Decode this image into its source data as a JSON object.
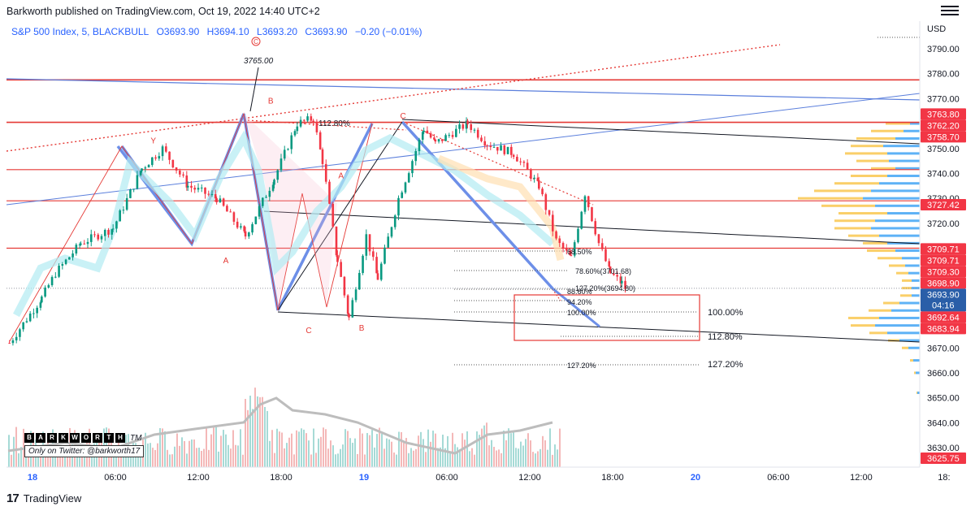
{
  "header": {
    "published": "Barkworth published on TradingView.com, Oct 19, 2022 14:40 UTC+2"
  },
  "symbol": {
    "name": "S&P 500 Index, 5, BLACKBULL",
    "open": "O3693.90",
    "high": "H3694.10",
    "low": "L3693.20",
    "close": "C3693.90",
    "change": "−0.20 (−0.01%)"
  },
  "axis": {
    "currency": "USD"
  },
  "footer": {
    "brand": "TradingView",
    "logo": "tv-logo-icon"
  },
  "watermark": {
    "letters": [
      "B",
      "A",
      "R",
      "K",
      "W",
      "O",
      "R",
      "T",
      "H"
    ],
    "tm": "TM",
    "twitter": "Only on Twitter: @barkworth17"
  },
  "colors": {
    "accent": "#2962ff",
    "red": "#f23645",
    "bull": "#26a69a",
    "text": "#131722"
  },
  "chart_data": {
    "type": "candlestick",
    "ylim": [
      3622,
      3797
    ],
    "y_ticks": [
      3790,
      3780,
      3770,
      3750,
      3740,
      3730,
      3720,
      3670,
      3660,
      3650,
      3640,
      3630
    ],
    "y_ticks_display": [
      "3790.00",
      "3780.00",
      "3770.00",
      "3750.00",
      "3740.00",
      "3730.00",
      "3720.00",
      "3670.00",
      "3660.00",
      "3650.00",
      "3640.00",
      "3630.00"
    ],
    "x_ticks": [
      {
        "label": "18",
        "pos": 0,
        "bold": true
      },
      {
        "label": "06:00",
        "pos": 72
      },
      {
        "label": "12:00",
        "pos": 144
      },
      {
        "label": "18:00",
        "pos": 216
      },
      {
        "label": "19",
        "pos": 288,
        "bold": true
      },
      {
        "label": "06:00",
        "pos": 360
      },
      {
        "label": "12:00",
        "pos": 432
      },
      {
        "label": "18:00",
        "pos": 504
      },
      {
        "label": "20",
        "pos": 576,
        "bold": true
      },
      {
        "label": "06:00",
        "pos": 648
      },
      {
        "label": "12:00",
        "pos": 720
      },
      {
        "label": "18:",
        "pos": 792
      }
    ],
    "price_path": [
      [
        -20,
        3672
      ],
      [
        8,
        3690
      ],
      [
        20,
        3700
      ],
      [
        42,
        3712
      ],
      [
        70,
        3718
      ],
      [
        95,
        3742
      ],
      [
        113,
        3750
      ],
      [
        135,
        3735
      ],
      [
        160,
        3730
      ],
      [
        185,
        3715
      ],
      [
        210,
        3738
      ],
      [
        230,
        3760
      ],
      [
        244,
        3762
      ],
      [
        252,
        3745
      ],
      [
        265,
        3705
      ],
      [
        275,
        3682
      ],
      [
        290,
        3715
      ],
      [
        300,
        3698
      ],
      [
        318,
        3730
      ],
      [
        340,
        3758
      ],
      [
        350,
        3752
      ],
      [
        378,
        3760
      ],
      [
        395,
        3752
      ],
      [
        418,
        3748
      ],
      [
        440,
        3735
      ],
      [
        455,
        3713
      ],
      [
        468,
        3706
      ],
      [
        480,
        3732
      ],
      [
        492,
        3712
      ],
      [
        502,
        3700
      ],
      [
        512,
        3696
      ],
      [
        518,
        3692
      ]
    ],
    "price_labels": [
      {
        "value": 3763.8,
        "text": "3763.80",
        "color": "#f23645"
      },
      {
        "value": 3762.2,
        "text": "3762.20",
        "color": "#f23645"
      },
      {
        "value": 3758.7,
        "text": "3758.70",
        "color": "#f23645"
      },
      {
        "value": 3727.42,
        "text": "3727.42",
        "color": "#f23645"
      },
      {
        "value": 3709.71,
        "text": "3709.71",
        "color": "#f23645"
      },
      {
        "value": 3709.71,
        "text": "3709.71",
        "color": "#f23645"
      },
      {
        "value": 3709.3,
        "text": "3709.30",
        "color": "#f23645"
      },
      {
        "value": 3698.9,
        "text": "3698.90",
        "color": "#f23645"
      },
      {
        "value": 3693.9,
        "text": "3693.90",
        "sub": "04:16",
        "color": "#2a5ea8"
      },
      {
        "value": 3692.64,
        "text": "3692.64",
        "color": "#f23645"
      },
      {
        "value": 3683.94,
        "text": "3683.94",
        "color": "#f23645"
      },
      {
        "value": 3625.75,
        "text": "3625.75",
        "color": "#f23645"
      }
    ],
    "horizontal_levels": [
      3777.5,
      3760.5,
      3741.5,
      3729.0,
      3710.0
    ],
    "wave_labels": [
      {
        "text": "Y",
        "t": 105,
        "v": 3752
      },
      {
        "text": "A",
        "t": 168,
        "v": 3704
      },
      {
        "text": "B",
        "t": 207,
        "v": 3768
      },
      {
        "text": "C",
        "t": 240,
        "v": 3676
      },
      {
        "text": "A",
        "t": 268,
        "v": 3738
      },
      {
        "text": "B",
        "t": 286,
        "v": 3677
      },
      {
        "text": "C",
        "t": 322,
        "v": 3762
      }
    ],
    "annotations": [
      {
        "text": "3765.00",
        "t": 222,
        "v": 3790
      },
      {
        "text": "112.80%",
        "t": 284,
        "v": 3761
      }
    ],
    "fib_left": [
      {
        "text": "68.50%",
        "v": 3709
      },
      {
        "text": "78.60%(3701.68)",
        "v": 3702
      },
      {
        "text": "127.20%(3694.80)",
        "v": 3696
      },
      {
        "text": "88.60%",
        "v": 3694
      },
      {
        "text": "94.20%",
        "v": 3690
      },
      {
        "text": "100.00%",
        "v": 3685
      },
      {
        "text": "127.20%",
        "v": 3663
      }
    ],
    "fib_right": [
      {
        "text": "100.00%",
        "v": 3685
      },
      {
        "text": "112.80%",
        "v": 3674
      },
      {
        "text": "127.20%",
        "v": 3663
      }
    ],
    "volume_profile": [
      {
        "v": 3760,
        "b": 30,
        "s": 12
      },
      {
        "v": 3757,
        "b": 40,
        "s": 20
      },
      {
        "v": 3754,
        "b": 48,
        "s": 30
      },
      {
        "v": 3751,
        "b": 40,
        "s": 45
      },
      {
        "v": 3748,
        "b": 52,
        "s": 40
      },
      {
        "v": 3745,
        "b": 40,
        "s": 38
      },
      {
        "v": 3742,
        "b": 30,
        "s": 30
      },
      {
        "v": 3739,
        "b": 45,
        "s": 40
      },
      {
        "v": 3736,
        "b": 55,
        "s": 50
      },
      {
        "v": 3733,
        "b": 70,
        "s": 60
      },
      {
        "v": 3730,
        "b": 80,
        "s": 70
      },
      {
        "v": 3727,
        "b": 66,
        "s": 55
      },
      {
        "v": 3724,
        "b": 60,
        "s": 40
      },
      {
        "v": 3721,
        "b": 50,
        "s": 55
      },
      {
        "v": 3718,
        "b": 45,
        "s": 60
      },
      {
        "v": 3715,
        "b": 38,
        "s": 50
      },
      {
        "v": 3712,
        "b": 30,
        "s": 40
      },
      {
        "v": 3709,
        "b": 35,
        "s": 30
      },
      {
        "v": 3706,
        "b": 30,
        "s": 22
      },
      {
        "v": 3703,
        "b": 20,
        "s": 18
      },
      {
        "v": 3700,
        "b": 15,
        "s": 14
      },
      {
        "v": 3697,
        "b": 12,
        "s": 10
      },
      {
        "v": 3694,
        "b": 12,
        "s": 10
      },
      {
        "v": 3691,
        "b": 14,
        "s": 10
      },
      {
        "v": 3688,
        "b": 20,
        "s": 25
      },
      {
        "v": 3685,
        "b": 28,
        "s": 35
      },
      {
        "v": 3682,
        "b": 38,
        "s": 50
      },
      {
        "v": 3679,
        "b": 30,
        "s": 55
      },
      {
        "v": 3676,
        "b": 22,
        "s": 40
      },
      {
        "v": 3673,
        "b": 14,
        "s": 25
      },
      {
        "v": 3670,
        "b": 8,
        "s": 14
      },
      {
        "v": 3665,
        "b": 4,
        "s": 8
      },
      {
        "v": 3660,
        "b": 2,
        "s": 5
      },
      {
        "v": 3652,
        "b": 1,
        "s": 3
      }
    ]
  }
}
